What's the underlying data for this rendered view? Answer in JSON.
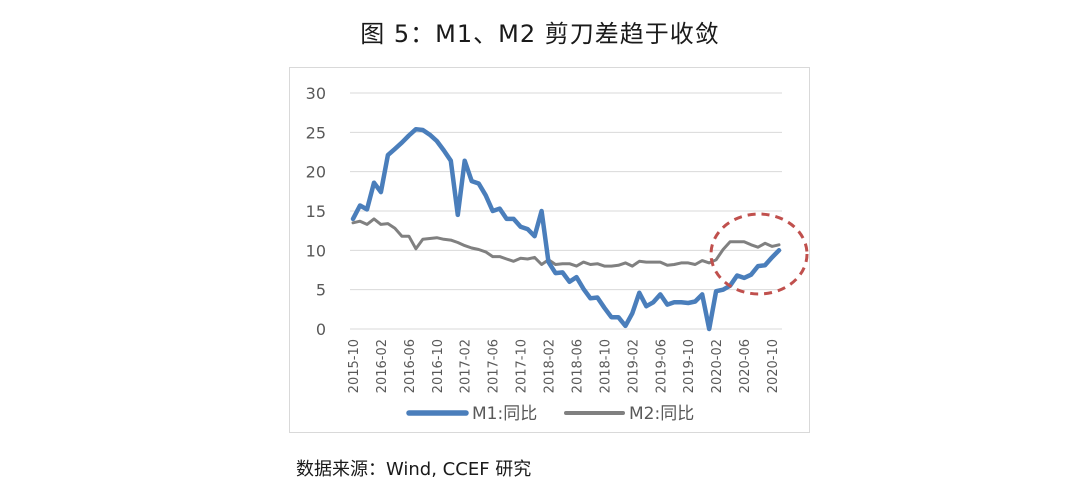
{
  "title": "图 5：M1、M2 剪刀差趋于收敛",
  "source": "数据来源：Wind, CCEF 研究",
  "colors": {
    "m1": "#4a7ebb",
    "m2": "#808080",
    "grid": "#d9d9d9",
    "circle": "#c0504d"
  },
  "chart_data": {
    "type": "line",
    "yticks": [
      0,
      5,
      10,
      15,
      20,
      25,
      30
    ],
    "ylim": [
      0,
      30
    ],
    "xticks": [
      "2015-10",
      "2016-02",
      "2016-06",
      "2016-10",
      "2017-02",
      "2017-06",
      "2017-10",
      "2018-02",
      "2018-06",
      "2018-10",
      "2019-02",
      "2019-06",
      "2019-10",
      "2020-02",
      "2020-06",
      "2020-10"
    ],
    "x": [
      "2015-10",
      "2015-11",
      "2015-12",
      "2016-01",
      "2016-02",
      "2016-03",
      "2016-04",
      "2016-05",
      "2016-06",
      "2016-07",
      "2016-08",
      "2016-09",
      "2016-10",
      "2016-11",
      "2016-12",
      "2017-01",
      "2017-02",
      "2017-03",
      "2017-04",
      "2017-05",
      "2017-06",
      "2017-07",
      "2017-08",
      "2017-09",
      "2017-10",
      "2017-11",
      "2017-12",
      "2018-01",
      "2018-02",
      "2018-03",
      "2018-04",
      "2018-05",
      "2018-06",
      "2018-07",
      "2018-08",
      "2018-09",
      "2018-10",
      "2018-11",
      "2018-12",
      "2019-01",
      "2019-02",
      "2019-03",
      "2019-04",
      "2019-05",
      "2019-06",
      "2019-07",
      "2019-08",
      "2019-09",
      "2019-10",
      "2019-11",
      "2019-12",
      "2020-01",
      "2020-02",
      "2020-03",
      "2020-04",
      "2020-05",
      "2020-06",
      "2020-07",
      "2020-08",
      "2020-09",
      "2020-10",
      "2020-11"
    ],
    "series": [
      {
        "name": "M1:同比",
        "values": [
          14.0,
          15.7,
          15.2,
          18.6,
          17.4,
          22.1,
          22.9,
          23.7,
          24.6,
          25.4,
          25.3,
          24.7,
          23.9,
          22.7,
          21.4,
          14.5,
          21.4,
          18.8,
          18.5,
          17.0,
          15.0,
          15.3,
          14.0,
          14.0,
          13.0,
          12.7,
          11.8,
          15.0,
          8.5,
          7.1,
          7.2,
          6.0,
          6.6,
          5.1,
          3.9,
          4.0,
          2.7,
          1.5,
          1.5,
          0.4,
          2.0,
          4.6,
          2.9,
          3.4,
          4.4,
          3.1,
          3.4,
          3.4,
          3.3,
          3.5,
          4.4,
          0.0,
          4.8,
          5.0,
          5.5,
          6.8,
          6.5,
          6.9,
          8.0,
          8.1,
          9.1,
          10.0
        ]
      },
      {
        "name": "M2:同比",
        "values": [
          13.5,
          13.7,
          13.3,
          14.0,
          13.3,
          13.4,
          12.8,
          11.8,
          11.8,
          10.2,
          11.4,
          11.5,
          11.6,
          11.4,
          11.3,
          11.0,
          10.6,
          10.3,
          10.1,
          9.8,
          9.2,
          9.2,
          8.9,
          8.6,
          9.0,
          8.9,
          9.1,
          8.2,
          8.8,
          8.2,
          8.3,
          8.3,
          8.0,
          8.5,
          8.2,
          8.3,
          8.0,
          8.0,
          8.1,
          8.4,
          8.0,
          8.6,
          8.5,
          8.5,
          8.5,
          8.1,
          8.2,
          8.4,
          8.4,
          8.2,
          8.7,
          8.4,
          8.8,
          10.1,
          11.1,
          11.1,
          11.1,
          10.7,
          10.4,
          10.9,
          10.5,
          10.7
        ]
      }
    ]
  }
}
